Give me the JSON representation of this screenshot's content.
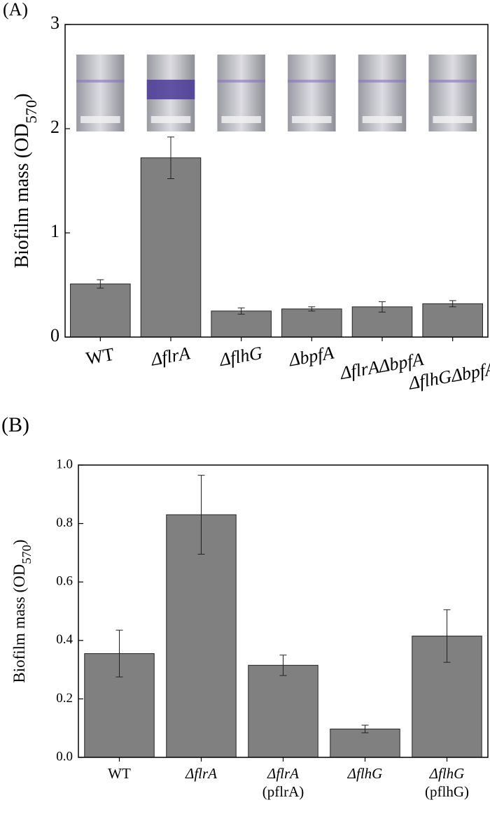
{
  "chart_data": [
    {
      "type": "bar",
      "panel_label": "(A)",
      "y_label_parts": [
        "Biofilm mass (OD",
        "570",
        ")"
      ],
      "categories": [
        [
          "WT"
        ],
        [
          "ΔflrA"
        ],
        [
          "ΔflhG"
        ],
        [
          "ΔbpfA"
        ],
        [
          "ΔflrAΔbpfA"
        ],
        [
          "ΔflhGΔbpfA"
        ]
      ],
      "values": [
        0.51,
        1.72,
        0.25,
        0.27,
        0.29,
        0.32
      ],
      "errors": [
        0.04,
        0.2,
        0.03,
        0.02,
        0.05,
        0.03
      ],
      "color": "#808080",
      "ylim": [
        0,
        3
      ],
      "yticks": [
        0,
        1,
        2,
        3
      ]
    },
    {
      "type": "bar",
      "panel_label": "(B)",
      "y_label_parts": [
        "Biofilm mass (OD",
        "570",
        ")"
      ],
      "categories": [
        [
          "WT"
        ],
        [
          "ΔflrA"
        ],
        [
          "ΔflrA",
          "(pflrA)"
        ],
        [
          "ΔflhG"
        ],
        [
          "ΔflhG",
          "(pflhG)"
        ]
      ],
      "values": [
        0.355,
        0.83,
        0.315,
        0.097,
        0.415
      ],
      "errors": [
        0.08,
        0.135,
        0.035,
        0.013,
        0.09
      ],
      "color": "#808080",
      "ylim": [
        0,
        1
      ],
      "yticks": [
        {
          "value": 0,
          "label": "0.0"
        },
        0.2,
        0.4,
        0.6,
        0.8,
        {
          "value": 1,
          "label": "1.0"
        }
      ]
    }
  ]
}
